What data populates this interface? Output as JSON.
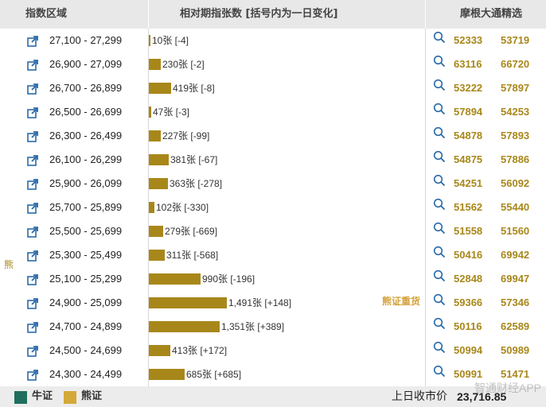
{
  "header": {
    "col_index": "指数区域",
    "col_change": "相对期指张数 [括号内为一日变化]",
    "col_jpm": "摩根大通精选"
  },
  "side_label": "熊",
  "annotation": "熊证重货",
  "rows": [
    {
      "range": "27,100 - 27,299",
      "count": 10,
      "label": "10张 [-4]",
      "v1": "52333",
      "v2": "53719"
    },
    {
      "range": "26,900 - 27,099",
      "count": 230,
      "label": "230张 [-2]",
      "v1": "63116",
      "v2": "66720"
    },
    {
      "range": "26,700 - 26,899",
      "count": 419,
      "label": "419张 [-8]",
      "v1": "53222",
      "v2": "57897"
    },
    {
      "range": "26,500 - 26,699",
      "count": 47,
      "label": "47张 [-3]",
      "v1": "57894",
      "v2": "54253"
    },
    {
      "range": "26,300 - 26,499",
      "count": 227,
      "label": "227张 [-99]",
      "v1": "54878",
      "v2": "57893"
    },
    {
      "range": "26,100 - 26,299",
      "count": 381,
      "label": "381张 [-67]",
      "v1": "54875",
      "v2": "57886"
    },
    {
      "range": "25,900 - 26,099",
      "count": 363,
      "label": "363张 [-278]",
      "v1": "54251",
      "v2": "56092"
    },
    {
      "range": "25,700 - 25,899",
      "count": 102,
      "label": "102张 [-330]",
      "v1": "51562",
      "v2": "55440"
    },
    {
      "range": "25,500 - 25,699",
      "count": 279,
      "label": "279张 [-669]",
      "v1": "51558",
      "v2": "51560"
    },
    {
      "range": "25,300 - 25,499",
      "count": 311,
      "label": "311张 [-568]",
      "v1": "50416",
      "v2": "69942"
    },
    {
      "range": "25,100 - 25,299",
      "count": 990,
      "label": "990张 [-196]",
      "v1": "52848",
      "v2": "69947"
    },
    {
      "range": "24,900 - 25,099",
      "count": 1491,
      "label": "1,491张 [+148]",
      "v1": "59366",
      "v2": "57346"
    },
    {
      "range": "24,700 - 24,899",
      "count": 1351,
      "label": "1,351张 [+389]",
      "v1": "50116",
      "v2": "62589"
    },
    {
      "range": "24,500 - 24,699",
      "count": 413,
      "label": "413张 [+172]",
      "v1": "50994",
      "v2": "50989"
    },
    {
      "range": "24,300 - 24,499",
      "count": 685,
      "label": "685张 [+685]",
      "v1": "50991",
      "v2": "51471"
    }
  ],
  "footer": {
    "legend_bull": "牛证",
    "legend_bear": "熊证",
    "close_label": "上日收市价",
    "close_value": "23,716.85",
    "watermark": "智通财经APP"
  },
  "colors": {
    "bear": "#a8871a",
    "bull_swatch": "#1f6e5e",
    "bear_swatch": "#d4a93a"
  }
}
